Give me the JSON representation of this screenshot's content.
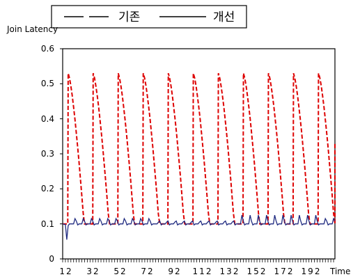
{
  "chart_data": {
    "type": "line",
    "ylabel": "Join Latency",
    "xlabel": "Time",
    "ylim": [
      0,
      0.6
    ],
    "yticks": [
      "0",
      "0.1",
      "0.2",
      "0.3",
      "0.4",
      "0.5",
      "0.6"
    ],
    "xlim": [
      1,
      200
    ],
    "xticks": [
      "12",
      "32",
      "52",
      "72",
      "92",
      "112",
      "132",
      "152",
      "172",
      "192"
    ],
    "xtick_values": [
      12,
      32,
      52,
      72,
      92,
      112,
      132,
      152,
      172,
      192
    ],
    "legend_position": "top-left",
    "series": [
      {
        "name": "기존",
        "color": "#dd0000",
        "dash": "dashed",
        "period": 18.3,
        "first_spike": 5,
        "baseline": 0.1,
        "peak": 0.53,
        "decay_steps": 12
      },
      {
        "name": "개선",
        "color": "#1f2a80",
        "dash": "solid",
        "baseline": 0.1,
        "dip": 0.055,
        "dip_x": 4,
        "bump_period": 6.1,
        "bump_offset": 3,
        "bump_peak": 0.125
      }
    ]
  }
}
